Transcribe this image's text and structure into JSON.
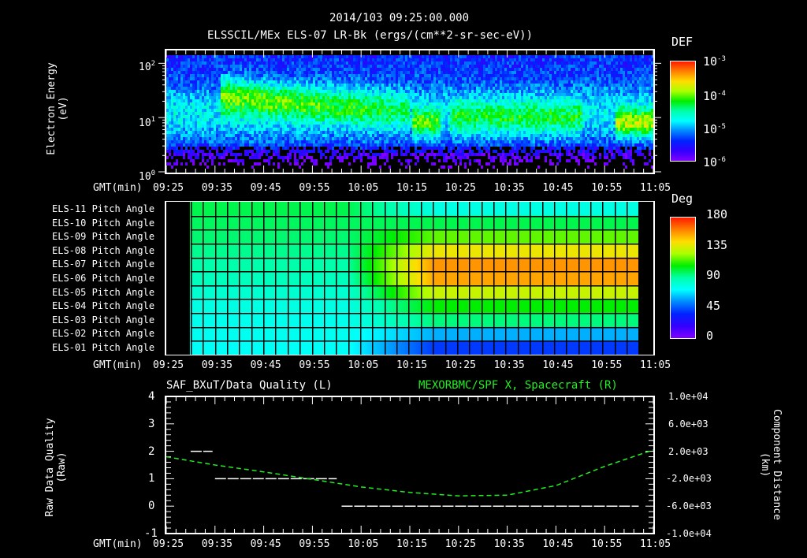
{
  "header": {
    "timestamp": "2014/103 09:25:00.000",
    "title": "ELSSCIL/MEx ELS-07 LR-Bk  (ergs/(cm**2-sr-sec-eV))"
  },
  "time_axis": {
    "label": "GMT(min)",
    "ticks": [
      "09:25",
      "09:35",
      "09:45",
      "09:55",
      "10:05",
      "10:15",
      "10:25",
      "10:35",
      "10:45",
      "10:55",
      "11:05"
    ]
  },
  "panel1": {
    "ylabel": "Electron Energy",
    "yunit": "(eV)",
    "yticks": [
      {
        "base": "10",
        "exp": "2"
      },
      {
        "base": "10",
        "exp": "1"
      },
      {
        "base": "10",
        "exp": "0"
      }
    ],
    "colorbar": {
      "title": "DEF",
      "ticks": [
        {
          "base": "10",
          "exp": "-3"
        },
        {
          "base": "10",
          "exp": "-4"
        },
        {
          "base": "10",
          "exp": "-5"
        },
        {
          "base": "10",
          "exp": "-6"
        }
      ]
    }
  },
  "panel2": {
    "rows": [
      "ELS-11 Pitch Angle",
      "ELS-10 Pitch Angle",
      "ELS-09 Pitch Angle",
      "ELS-08 Pitch Angle",
      "ELS-07 Pitch Angle",
      "ELS-06 Pitch Angle",
      "ELS-05 Pitch Angle",
      "ELS-04 Pitch Angle",
      "ELS-03 Pitch Angle",
      "ELS-02 Pitch Angle",
      "ELS-01 Pitch Angle"
    ],
    "colorbar": {
      "title": "Deg",
      "ticks": [
        "180",
        "135",
        "90",
        "45",
        "0"
      ]
    }
  },
  "panel3": {
    "left_title": "SAF_BXuT/Data Quality (L)",
    "right_title": "MEXORBMC/SPF X, Spacecraft (R)",
    "ylabel_left": "Raw Data Quality",
    "yunit_left": "(Raw)",
    "ylabel_right": "Component Distance",
    "yunit_right": "(km)",
    "yticks_left": [
      "4",
      "3",
      "2",
      "1",
      "0",
      "-1"
    ],
    "yticks_right": [
      "1.0e+04",
      "6.0e+03",
      "2.0e+03",
      "-2.0e+03",
      "-6.0e+03",
      "-1.0e+04"
    ]
  },
  "colors": {
    "background": "#000000",
    "axes": "#ffffff",
    "right_series": "#22ee22"
  },
  "chart_data": [
    {
      "type": "heatmap",
      "title": "ELSSCIL/MEx ELS-07 LR-Bk (ergs/(cm**2-sr-sec-eV))",
      "xlabel": "GMT(min)",
      "ylabel": "Electron Energy (eV)",
      "yscale": "log",
      "ylim": [
        1,
        150
      ],
      "x_ticks": [
        "09:25",
        "09:35",
        "09:45",
        "09:55",
        "10:05",
        "10:15",
        "10:25",
        "10:35",
        "10:45",
        "10:55",
        "11:05"
      ],
      "colorbar": {
        "label": "DEF",
        "scale": "log",
        "range": [
          1e-06,
          0.001
        ]
      },
      "features": [
        {
          "time": "09:25-09:36",
          "energy_eV": "5-100",
          "level": "~1e-5"
        },
        {
          "time": "09:36-10:15",
          "energy_eV": "8-60",
          "level": "~1e-4 (peak ~2e-4 near 09:40, 30 eV)"
        },
        {
          "time": "10:15-10:22",
          "energy_eV": "5-20",
          "level": "~1e-4"
        },
        {
          "time": "10:24-10:50",
          "energy_eV": "4-20",
          "level": "~2e-5"
        },
        {
          "time": "10:57-11:05",
          "energy_eV": "5-15",
          "level": "~1e-4"
        }
      ]
    },
    {
      "type": "heatmap",
      "title": "Pitch Angle",
      "xlabel": "GMT(min)",
      "categories": [
        "ELS-11",
        "ELS-10",
        "ELS-09",
        "ELS-08",
        "ELS-07",
        "ELS-06",
        "ELS-05",
        "ELS-04",
        "ELS-03",
        "ELS-02",
        "ELS-01"
      ],
      "colorbar": {
        "label": "Deg",
        "range": [
          0,
          180
        ]
      },
      "data_time_range": [
        "09:30",
        "11:02"
      ],
      "series": [
        {
          "name": "09:30-10:02",
          "values": [
            100,
            98,
            96,
            93,
            90,
            86,
            82,
            78,
            76,
            75,
            74
          ]
        },
        {
          "name": "10:20-11:02",
          "values": [
            78,
            100,
            118,
            140,
            158,
            155,
            132,
            108,
            95,
            60,
            40
          ]
        }
      ]
    },
    {
      "type": "line",
      "title": "SAF_BXuT/Data Quality (L) ; MEXORBMC/SPF X, Spacecraft (R)",
      "xlabel": "GMT(min)",
      "ylabel": "Raw Data Quality (Raw)",
      "ylim": [
        -1,
        4
      ],
      "y2label": "Component Distance (km)",
      "y2lim": [
        -10000,
        10000
      ],
      "series": [
        {
          "name": "Data Quality (L)",
          "axis": "left",
          "x": [
            "09:30",
            "09:34",
            "09:35",
            "10:05",
            "10:06",
            "11:02"
          ],
          "values": [
            2,
            2,
            1,
            1,
            0,
            0
          ]
        },
        {
          "name": "SPF X, Spacecraft (R)",
          "axis": "right",
          "x": [
            "09:25",
            "09:35",
            "09:45",
            "09:55",
            "10:05",
            "10:15",
            "10:25",
            "10:35",
            "10:45",
            "10:55",
            "11:05"
          ],
          "values": [
            1200,
            0,
            -1000,
            -2100,
            -3200,
            -4000,
            -4500,
            -4400,
            -3000,
            -200,
            2200
          ]
        }
      ]
    }
  ]
}
